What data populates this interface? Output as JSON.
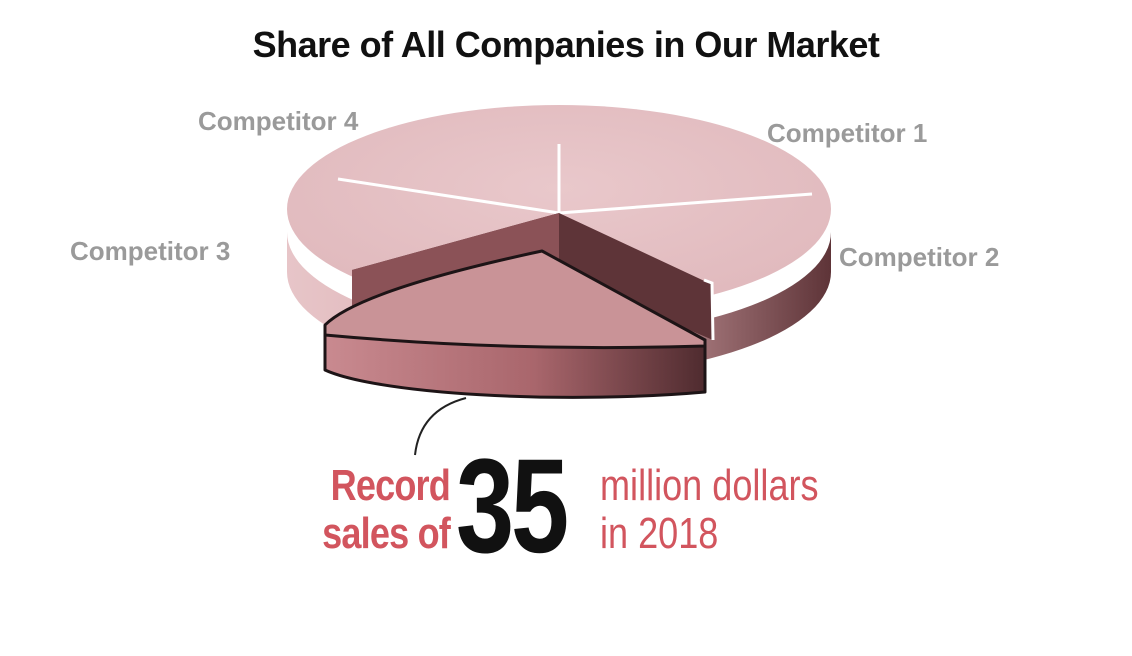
{
  "chart_data": {
    "type": "pie",
    "title": "Share of All Companies in Our Market",
    "slices": [
      {
        "label": "",
        "highlighted": true
      },
      {
        "label": "Competitor 1"
      },
      {
        "label": "Competitor 2"
      },
      {
        "label": "Competitor 3"
      },
      {
        "label": "Competitor 4"
      }
    ],
    "callout": {
      "line1": "Record",
      "line2": "sales of",
      "number": "35",
      "line3": "million dollars",
      "line4": "in 2018"
    }
  },
  "colors": {
    "slice_top": "#e4c0c3",
    "slice_side_dark": "#5e3438",
    "highlight_top": "#c99397",
    "highlight_side": "#b47379",
    "label_gray": "#9a9a9a",
    "accent_red": "#d2555e"
  }
}
